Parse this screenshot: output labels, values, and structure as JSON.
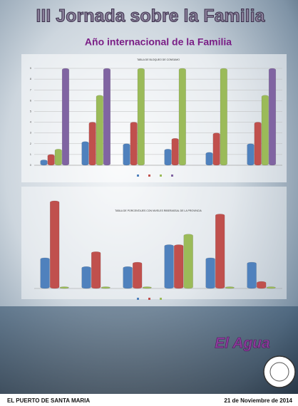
{
  "poster": {
    "title": "III Jornada sobre la Familia",
    "subtitle": "Año internacional de la Familia",
    "theme": "El Agua",
    "place": "EL PUERTO DE SANTA MARIA",
    "date": "21 de Noviembre de 2014"
  },
  "chart_data": [
    {
      "type": "bar",
      "title": "TABLA DE BLOQUEO DE CONSUMO",
      "categories": [
        null,
        null,
        null,
        null,
        null,
        null
      ],
      "series": [
        {
          "color": "#4f81bd",
          "values": [
            0.5,
            2.2,
            2,
            1.5,
            1.2,
            2
          ]
        },
        {
          "color": "#c0504d",
          "values": [
            1,
            4,
            4,
            2.5,
            3,
            4
          ]
        },
        {
          "color": "#9bbb59",
          "values": [
            1.5,
            6.5,
            9,
            9,
            9,
            6.5
          ]
        },
        {
          "color": "#8064a2",
          "values": [
            9,
            9,
            null,
            null,
            null,
            9
          ]
        }
      ],
      "ylim": [
        0,
        9
      ],
      "yticks": [
        0,
        1,
        2,
        3,
        4,
        5,
        6,
        7,
        8,
        9
      ],
      "grid": true
    },
    {
      "type": "bar",
      "title": "TABLA DE PORCENTAJES CON NIVELES RIBERASSAL DE LA PROVINCIA",
      "categories": [
        null,
        null,
        null,
        null,
        null,
        null
      ],
      "series": [
        {
          "color": "#4f81bd",
          "values": [
            35,
            25,
            25,
            50,
            35,
            30
          ]
        },
        {
          "color": "#c0504d",
          "values": [
            100,
            42,
            30,
            50,
            85,
            8
          ]
        },
        {
          "color": "#9bbb59",
          "values": [
            2,
            2,
            2,
            62,
            2,
            2
          ]
        }
      ],
      "ylim": [
        0,
        100
      ]
    }
  ]
}
